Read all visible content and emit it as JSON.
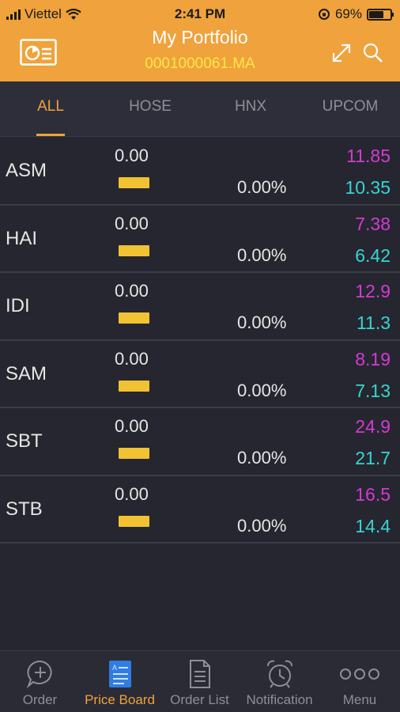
{
  "status_bar": {
    "carrier": "Viettel",
    "time": "2:41 PM",
    "battery": "69%",
    "battery_level": 0.69
  },
  "header": {
    "title": "My Portfolio",
    "account": "0001000061.MA",
    "icons": [
      "portfolio-card-icon",
      "expand-icon",
      "search-icon"
    ]
  },
  "tabs": [
    {
      "label": "ALL",
      "active": true
    },
    {
      "label": "HOSE",
      "active": false
    },
    {
      "label": "HNX",
      "active": false
    },
    {
      "label": "UPCOM",
      "active": false
    }
  ],
  "stocks": [
    {
      "symbol": "ASM",
      "change": "0.00",
      "percent": "0.00%",
      "high": "11.85",
      "low": "10.35"
    },
    {
      "symbol": "HAI",
      "change": "0.00",
      "percent": "0.00%",
      "high": "7.38",
      "low": "6.42"
    },
    {
      "symbol": "IDI",
      "change": "0.00",
      "percent": "0.00%",
      "high": "12.9",
      "low": "11.3"
    },
    {
      "symbol": "SAM",
      "change": "0.00",
      "percent": "0.00%",
      "high": "8.19",
      "low": "7.13"
    },
    {
      "symbol": "SBT",
      "change": "0.00",
      "percent": "0.00%",
      "high": "24.9",
      "low": "21.7"
    },
    {
      "symbol": "STB",
      "change": "0.00",
      "percent": "0.00%",
      "high": "16.5",
      "low": "14.4"
    }
  ],
  "bottom_nav": [
    {
      "label": "Order",
      "icon": "chat-plus-icon",
      "active": false
    },
    {
      "label": "Price Board",
      "icon": "price-board-icon",
      "active": true
    },
    {
      "label": "Order List",
      "icon": "document-icon",
      "active": false
    },
    {
      "label": "Notification",
      "icon": "alarm-clock-icon",
      "active": false
    },
    {
      "label": "Menu",
      "icon": "more-dots-icon",
      "active": false
    }
  ],
  "colors": {
    "header": "#f0a23c",
    "account": "#f9e84a",
    "background": "#262630",
    "high": "#d23bd2",
    "low": "#37d5d0",
    "bar": "#f1c232"
  }
}
